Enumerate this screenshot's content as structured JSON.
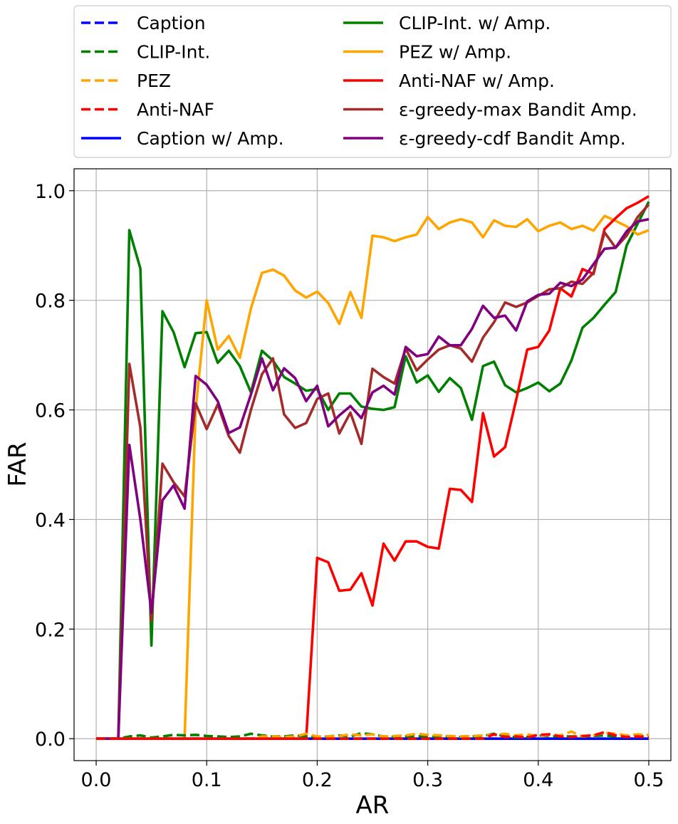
{
  "chart_data": {
    "type": "line",
    "xlabel": "AR",
    "ylabel": "FAR",
    "xlim": [
      -0.02,
      0.52
    ],
    "ylim": [
      -0.04,
      1.04
    ],
    "xticks": [
      "0.0",
      "0.1",
      "0.2",
      "0.3",
      "0.4",
      "0.5"
    ],
    "yticks": [
      "0.0",
      "0.2",
      "0.4",
      "0.6",
      "0.8",
      "1.0"
    ],
    "grid": true,
    "legend_position": "top",
    "x": [
      0.0,
      0.01,
      0.02,
      0.03,
      0.04,
      0.05,
      0.06,
      0.07,
      0.08,
      0.09,
      0.1,
      0.11,
      0.12,
      0.13,
      0.14,
      0.15,
      0.16,
      0.17,
      0.18,
      0.19,
      0.2,
      0.21,
      0.22,
      0.23,
      0.24,
      0.25,
      0.26,
      0.27,
      0.28,
      0.29,
      0.3,
      0.31,
      0.32,
      0.33,
      0.34,
      0.35,
      0.36,
      0.37,
      0.38,
      0.39,
      0.4,
      0.41,
      0.42,
      0.43,
      0.44,
      0.45,
      0.46,
      0.47,
      0.48,
      0.49,
      0.5
    ],
    "series": [
      {
        "name": "Caption",
        "color": "#0000ff",
        "style": "dashed",
        "values": [
          0,
          0,
          0,
          0,
          0,
          0,
          0,
          0,
          0,
          0,
          0,
          0,
          0,
          0,
          0,
          0,
          0,
          0,
          0,
          0,
          0,
          0,
          0,
          0,
          0,
          0,
          0,
          0,
          0,
          0,
          0,
          0,
          0,
          0,
          0,
          0,
          0,
          0,
          0,
          0,
          0,
          0,
          0,
          0,
          0,
          0,
          0,
          0,
          0,
          0,
          0
        ]
      },
      {
        "name": "CLIP-Int.",
        "color": "#008000",
        "style": "dashed",
        "values": [
          0,
          0,
          0,
          0.004,
          0.006,
          0.002,
          0.004,
          0.007,
          0.006,
          0.007,
          0.005,
          0.004,
          0.003,
          0.004,
          0.009,
          0.006,
          0.004,
          0.004,
          0.006,
          0.004,
          0.003,
          0.004,
          0.006,
          0.004,
          0.01,
          0.008,
          0.004,
          0.003,
          0.004,
          0.005,
          0.004,
          0.003,
          0.004,
          0.003,
          0.004,
          0.005,
          0.009,
          0.004,
          0.003,
          0.003,
          0.006,
          0.005,
          0.004,
          0.004,
          0.004,
          0.005,
          0.006,
          0.004,
          0.003,
          0.005,
          0.005
        ]
      },
      {
        "name": "PEZ",
        "color": "#ffa500",
        "style": "dashed",
        "values": [
          0,
          0,
          0,
          0,
          0,
          0,
          0,
          0,
          0,
          0,
          0,
          0,
          0,
          0,
          0,
          0.004,
          0.004,
          0.003,
          0.004,
          0.009,
          0.004,
          0.004,
          0.005,
          0.008,
          0.006,
          0.008,
          0.004,
          0.005,
          0.006,
          0.009,
          0.007,
          0.006,
          0.005,
          0.004,
          0.005,
          0.006,
          0.007,
          0.009,
          0.006,
          0.008,
          0.005,
          0.007,
          0.006,
          0.013,
          0.004,
          0.006,
          0.011,
          0.009,
          0.006,
          0.008,
          0.007
        ]
      },
      {
        "name": "Anti-NAF",
        "color": "#ff0000",
        "style": "dashed",
        "values": [
          0,
          0,
          0,
          0,
          0,
          0,
          0,
          0,
          0,
          0,
          0,
          0,
          0,
          0,
          0,
          0,
          0,
          0,
          0,
          0,
          0,
          0,
          0,
          0,
          0,
          0,
          0,
          0,
          0,
          0,
          0,
          0,
          0,
          0,
          0,
          0,
          0.008,
          0.003,
          0.004,
          0.002,
          0.007,
          0.008,
          0.004,
          0.003,
          0.005,
          0.006,
          0.012,
          0.006,
          0.003,
          0.004,
          0.002
        ]
      },
      {
        "name": "Caption w/ Amp.",
        "color": "#0000ff",
        "style": "solid",
        "values": [
          0,
          0,
          0,
          0,
          0,
          0,
          0,
          0,
          0,
          0,
          0,
          0,
          0,
          0,
          0,
          0,
          0,
          0,
          0,
          0,
          0,
          0,
          0,
          0,
          0,
          0,
          0,
          0,
          0,
          0,
          0,
          0,
          0,
          0,
          0,
          0,
          0,
          0,
          0,
          0,
          0,
          0,
          0,
          0,
          0,
          0,
          0,
          0,
          0,
          0,
          0
        ]
      },
      {
        "name": "CLIP-Int. w/ Amp.",
        "color": "#008000",
        "style": "solid",
        "values": [
          0,
          0,
          0,
          0.928,
          0.858,
          0.17,
          0.78,
          0.742,
          0.678,
          0.74,
          0.742,
          0.686,
          0.708,
          0.68,
          0.632,
          0.708,
          0.69,
          0.66,
          0.648,
          0.635,
          0.638,
          0.6,
          0.63,
          0.63,
          0.606,
          0.602,
          0.6,
          0.605,
          0.698,
          0.65,
          0.663,
          0.633,
          0.658,
          0.64,
          0.582,
          0.68,
          0.688,
          0.645,
          0.632,
          0.64,
          0.65,
          0.634,
          0.648,
          0.69,
          0.75,
          0.768,
          0.792,
          0.815,
          0.9,
          0.94,
          0.98
        ]
      },
      {
        "name": "PEZ w/ Amp.",
        "color": "#ffa500",
        "style": "solid",
        "values": [
          0,
          0,
          0,
          0,
          0,
          0,
          0,
          0,
          0,
          0.6,
          0.8,
          0.71,
          0.735,
          0.695,
          0.785,
          0.85,
          0.856,
          0.845,
          0.818,
          0.805,
          0.816,
          0.795,
          0.757,
          0.815,
          0.768,
          0.918,
          0.915,
          0.908,
          0.915,
          0.92,
          0.952,
          0.93,
          0.942,
          0.948,
          0.942,
          0.915,
          0.946,
          0.936,
          0.934,
          0.948,
          0.926,
          0.936,
          0.942,
          0.93,
          0.936,
          0.927,
          0.954,
          0.945,
          0.935,
          0.92,
          0.928
        ]
      },
      {
        "name": "Anti-NAF w/ Amp.",
        "color": "#ff0000",
        "style": "solid",
        "values": [
          0,
          0,
          0,
          0,
          0,
          0,
          0,
          0,
          0,
          0,
          0,
          0,
          0,
          0,
          0,
          0,
          0,
          0,
          0,
          0,
          0.33,
          0.322,
          0.27,
          0.272,
          0.302,
          0.243,
          0.356,
          0.325,
          0.36,
          0.36,
          0.35,
          0.347,
          0.456,
          0.454,
          0.432,
          0.594,
          0.515,
          0.532,
          0.618,
          0.71,
          0.715,
          0.745,
          0.822,
          0.807,
          0.857,
          0.848,
          0.93,
          0.95,
          0.968,
          0.978,
          0.99
        ]
      },
      {
        "name": "ε-greedy-max Bandit Amp.",
        "color": "#a52a2a",
        "style": "solid",
        "values": [
          0,
          0,
          0,
          0.684,
          0.568,
          0.215,
          0.502,
          0.468,
          0.442,
          0.612,
          0.565,
          0.61,
          0.552,
          0.522,
          0.6,
          0.665,
          0.694,
          0.592,
          0.567,
          0.576,
          0.62,
          0.63,
          0.557,
          0.595,
          0.538,
          0.675,
          0.66,
          0.648,
          0.712,
          0.672,
          0.692,
          0.71,
          0.718,
          0.712,
          0.688,
          0.732,
          0.76,
          0.796,
          0.788,
          0.796,
          0.808,
          0.82,
          0.822,
          0.834,
          0.83,
          0.85,
          0.924,
          0.896,
          0.918,
          0.952,
          0.975
        ]
      },
      {
        "name": "ε-greedy-cdf Bandit Amp.",
        "color": "#800080",
        "style": "solid",
        "values": [
          0,
          0,
          0,
          0.536,
          0.4,
          0.23,
          0.435,
          0.462,
          0.42,
          0.662,
          0.646,
          0.616,
          0.558,
          0.568,
          0.628,
          0.694,
          0.636,
          0.676,
          0.658,
          0.616,
          0.644,
          0.57,
          0.59,
          0.607,
          0.585,
          0.632,
          0.644,
          0.628,
          0.715,
          0.698,
          0.702,
          0.734,
          0.718,
          0.718,
          0.748,
          0.79,
          0.768,
          0.772,
          0.745,
          0.798,
          0.81,
          0.812,
          0.832,
          0.826,
          0.838,
          0.866,
          0.894,
          0.896,
          0.926,
          0.944,
          0.948
        ]
      }
    ]
  }
}
